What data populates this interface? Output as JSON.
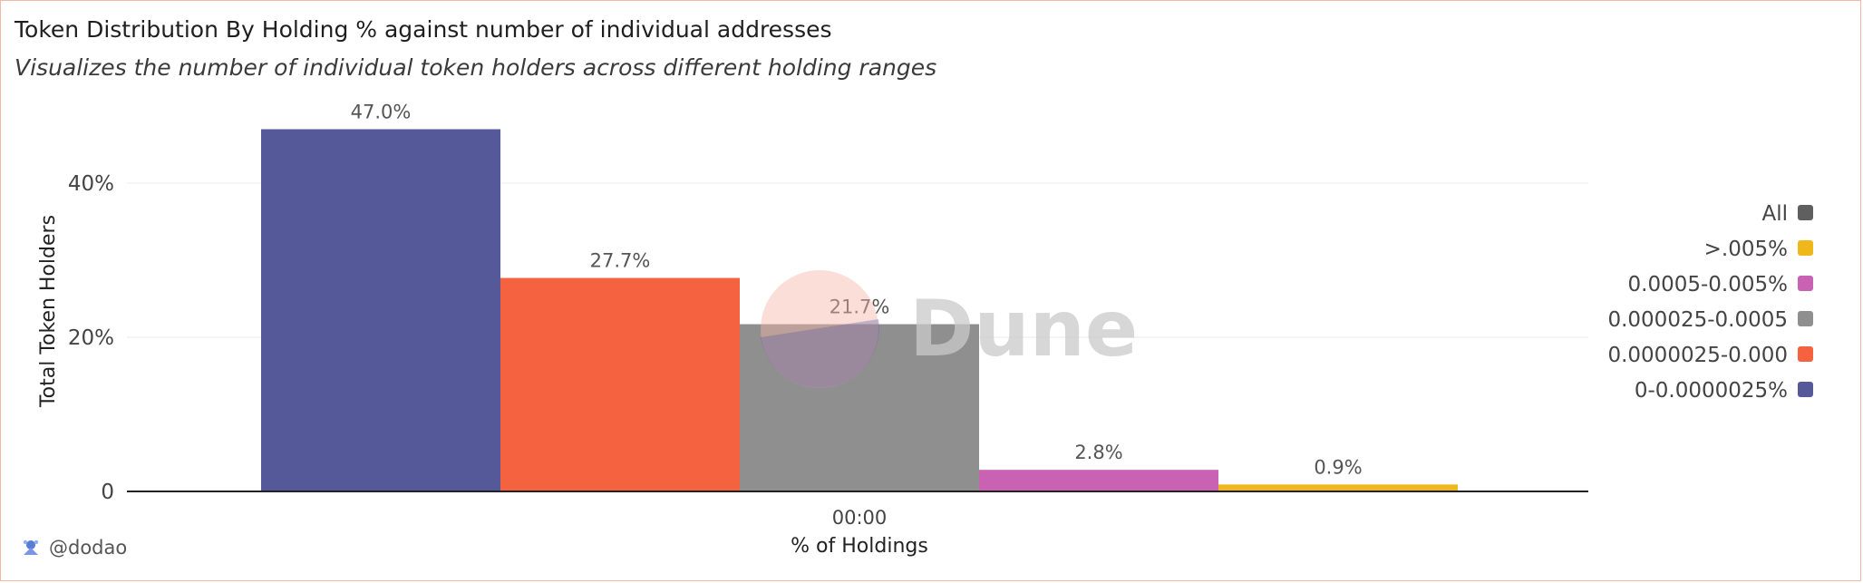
{
  "header": {
    "title": "Token Distribution By Holding % against number of individual addresses",
    "subtitle": "Visualizes the number of individual token holders across different holding ranges"
  },
  "watermark": {
    "text": "Dune"
  },
  "footer": {
    "author": "@dodao"
  },
  "colors": {
    "0-0.0000025%": "#55599a",
    "0.0000025-0.000": "#f4623f",
    "0.000025-0.0005": "#8f8f8f",
    "0.0005-0.005%": "#c962b2",
    ">.005%": "#f0b71a",
    "All": "#5f5f5f"
  },
  "chart_data": {
    "type": "bar",
    "categories": [
      "00:00"
    ],
    "xlabel": "% of Holdings",
    "ylabel": "Total Token Holders",
    "ylim": [
      0,
      50
    ],
    "yticks": [
      {
        "value": 0,
        "label": "0"
      },
      {
        "value": 20,
        "label": "20%"
      },
      {
        "value": 40,
        "label": "40%"
      }
    ],
    "grid": true,
    "legend_position": "right",
    "series": [
      {
        "name": "0-0.0000025%",
        "values": [
          47.0
        ],
        "label": "47.0%"
      },
      {
        "name": "0.0000025-0.000",
        "values": [
          27.7
        ],
        "label": "27.7%"
      },
      {
        "name": "0.000025-0.0005",
        "values": [
          21.7
        ],
        "label": "21.7%"
      },
      {
        "name": "0.0005-0.005%",
        "values": [
          2.8
        ],
        "label": "2.8%"
      },
      {
        "name": ">.005%",
        "values": [
          0.9
        ],
        "label": "0.9%"
      }
    ],
    "legend": [
      "All",
      ">.005%",
      "0.0005-0.005%",
      "0.000025-0.0005",
      "0.0000025-0.000",
      "0-0.0000025%"
    ]
  }
}
